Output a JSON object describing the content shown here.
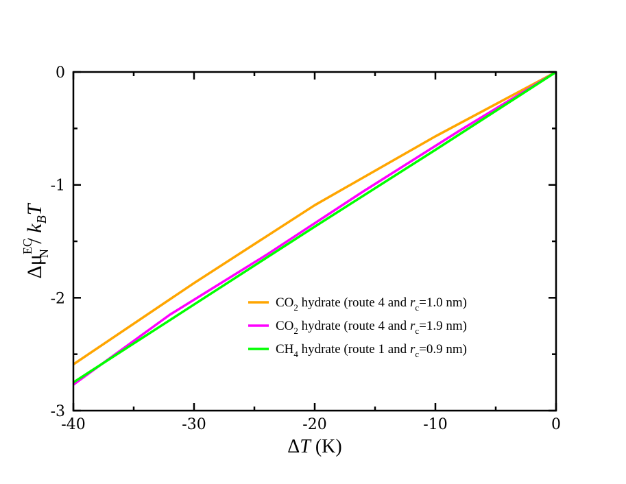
{
  "chart_data": {
    "type": "line",
    "xlabel": {
      "prefix": "Δ",
      "var": "T",
      "unit": " (K)"
    },
    "ylabel": {
      "prefix": "Δμ",
      "sup": "EC",
      "sub": "N",
      "sep": " / ",
      "k": "k",
      "ksub": "B",
      "var": "T"
    },
    "xlim": [
      -40,
      0
    ],
    "ylim": [
      -3,
      0
    ],
    "xticks": [
      -40,
      -30,
      -20,
      -10,
      0
    ],
    "xtick_labels": [
      "-40",
      "-30",
      "-20",
      "-10",
      "0"
    ],
    "yticks": [
      -3,
      -2,
      -1,
      0
    ],
    "ytick_labels": [
      "-3",
      "-2",
      "-1",
      "0"
    ],
    "legend_position": "lower-right",
    "series": [
      {
        "name": "CO2 hydrate (route 4 and rc=1.0 nm)",
        "legend": {
          "a": "CO",
          "a_sub": "2",
          "b": " hydrate (route 4 and ",
          "r": "r",
          "r_sub": "c",
          "c": "=1.0 nm)"
        },
        "color": "#ffa500",
        "x": [
          -40,
          -30,
          -20,
          -10,
          0
        ],
        "y": [
          -2.59,
          -1.87,
          -1.18,
          -0.57,
          0
        ]
      },
      {
        "name": "CO2 hydrate (route 4 and rc=1.9 nm)",
        "legend": {
          "a": "CO",
          "a_sub": "2",
          "b": " hydrate (route 4 and ",
          "r": "r",
          "r_sub": "c",
          "c": "=1.9 nm)"
        },
        "color": "#ff00ff",
        "x": [
          -40,
          -32,
          -24,
          -16,
          -8,
          0
        ],
        "y": [
          -2.77,
          -2.15,
          -1.62,
          -1.06,
          -0.52,
          0
        ]
      },
      {
        "name": "CH4 hydrate (route 1 and rc=0.9 nm)",
        "legend": {
          "a": "CH",
          "a_sub": "4",
          "b": " hydrate (route 1 and ",
          "r": "r",
          "r_sub": "c",
          "c": "=0.9 nm)"
        },
        "color": "#00ff00",
        "x": [
          -40,
          -30,
          -20,
          -10,
          0
        ],
        "y": [
          -2.75,
          -2.06,
          -1.37,
          -0.69,
          0
        ]
      }
    ]
  }
}
